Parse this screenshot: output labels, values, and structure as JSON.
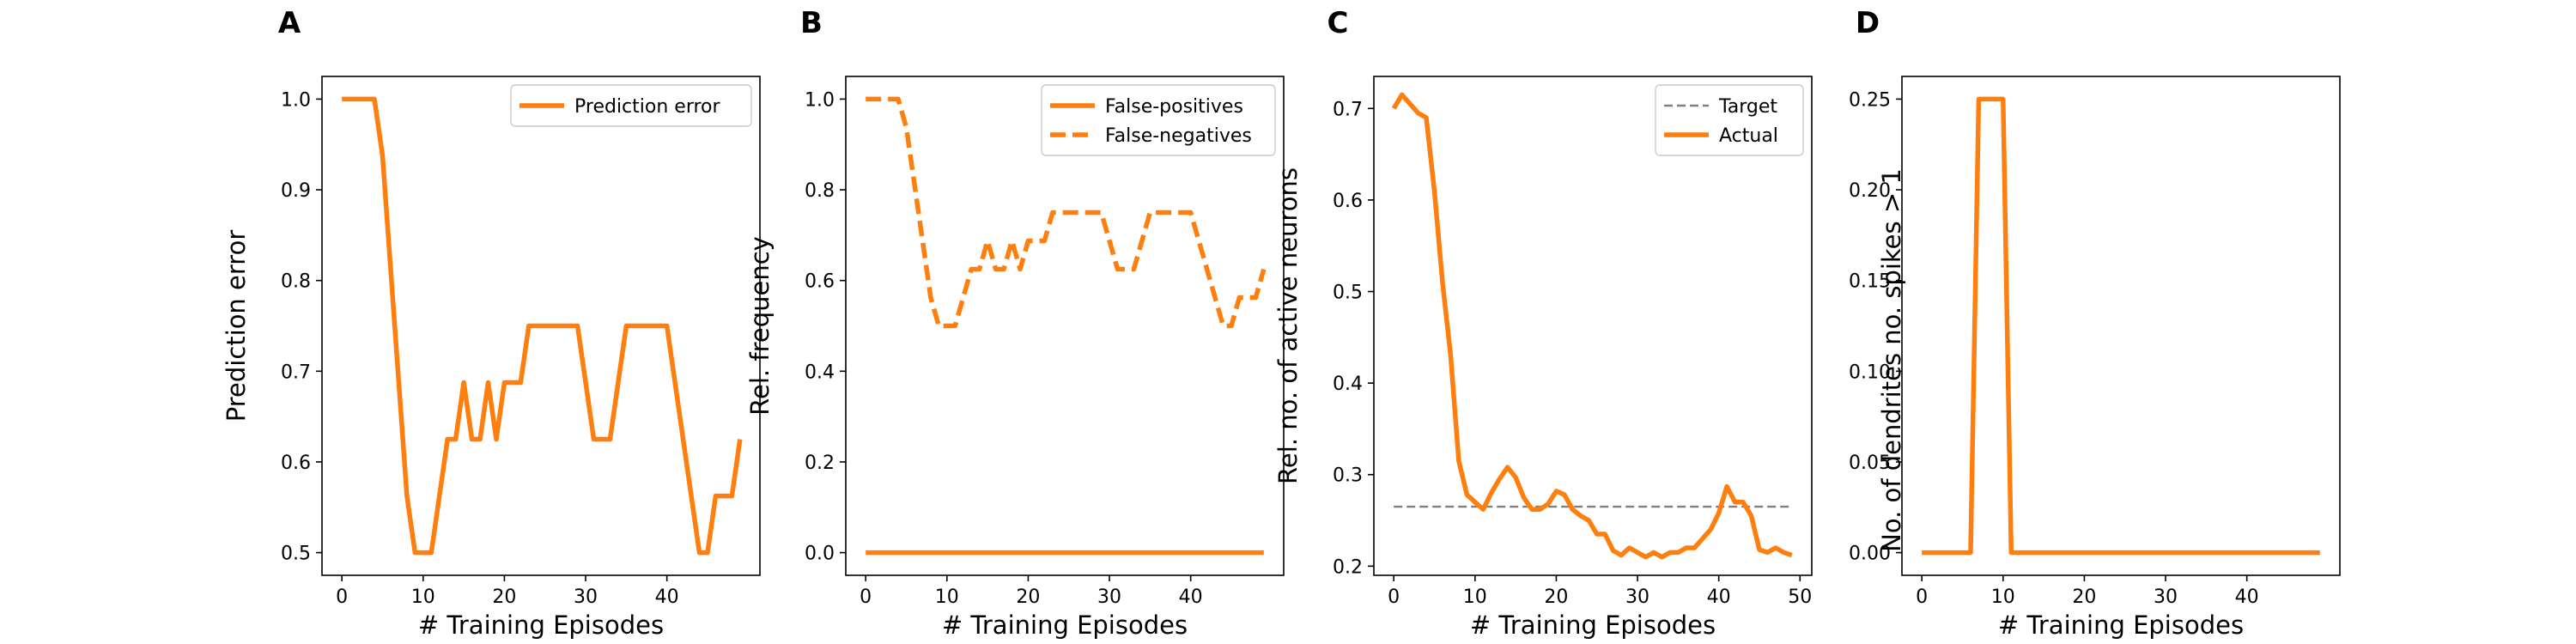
{
  "colors": {
    "orange": "#ff7f0e",
    "target_gray": "#808080",
    "axis": "#000000",
    "legend_border": "#cccccc"
  },
  "chart_data": [
    {
      "panel": "A",
      "type": "line",
      "xlabel": "# Training Episodes",
      "ylabel": "Prediction error",
      "xlim": [
        -2.45,
        51.45
      ],
      "ylim": [
        0.475,
        1.025
      ],
      "xticks": [
        0,
        10,
        20,
        30,
        40
      ],
      "xtick_labels": [
        "0",
        "10",
        "20",
        "30",
        "40"
      ],
      "yticks": [
        0.5,
        0.6,
        0.7,
        0.8,
        0.9,
        1.0
      ],
      "ytick_labels": [
        "0.5",
        "0.6",
        "0.7",
        "0.8",
        "0.9",
        "1.0"
      ],
      "legend": {
        "position": "upper right",
        "entries": [
          {
            "label": "Prediction error",
            "style": "solid",
            "color": "#ff7f0e"
          }
        ]
      },
      "series": [
        {
          "name": "Prediction error",
          "style": "solid",
          "color": "#ff7f0e",
          "x": [
            0,
            1,
            2,
            3,
            4,
            5,
            6,
            7,
            8,
            9,
            10,
            11,
            12,
            13,
            14,
            15,
            16,
            17,
            18,
            19,
            20,
            21,
            22,
            23,
            24,
            25,
            26,
            27,
            28,
            29,
            30,
            31,
            32,
            33,
            34,
            35,
            36,
            37,
            38,
            39,
            40,
            41,
            42,
            43,
            44,
            45,
            46,
            47,
            48,
            49
          ],
          "y": [
            1.0,
            1.0,
            1.0,
            1.0,
            1.0,
            0.9375,
            0.8125,
            0.6875,
            0.5625,
            0.5,
            0.5,
            0.5,
            0.5625,
            0.625,
            0.625,
            0.6875,
            0.625,
            0.625,
            0.6875,
            0.625,
            0.6875,
            0.6875,
            0.6875,
            0.75,
            0.75,
            0.75,
            0.75,
            0.75,
            0.75,
            0.75,
            0.6875,
            0.625,
            0.625,
            0.625,
            0.6875,
            0.75,
            0.75,
            0.75,
            0.75,
            0.75,
            0.75,
            0.6875,
            0.625,
            0.5625,
            0.5,
            0.5,
            0.5625,
            0.5625,
            0.5625,
            0.625
          ]
        }
      ]
    },
    {
      "panel": "B",
      "type": "line",
      "xlabel": "# Training Episodes",
      "ylabel": "Rel. frequency",
      "xlim": [
        -2.45,
        51.45
      ],
      "ylim": [
        -0.05,
        1.05
      ],
      "xticks": [
        0,
        10,
        20,
        30,
        40
      ],
      "xtick_labels": [
        "0",
        "10",
        "20",
        "30",
        "40"
      ],
      "yticks": [
        0.0,
        0.2,
        0.4,
        0.6,
        0.8,
        1.0
      ],
      "ytick_labels": [
        "0.0",
        "0.2",
        "0.4",
        "0.6",
        "0.8",
        "1.0"
      ],
      "legend": {
        "position": "upper right",
        "entries": [
          {
            "label": "False-positives",
            "style": "solid",
            "color": "#ff7f0e"
          },
          {
            "label": "False-negatives",
            "style": "dashed",
            "color": "#ff7f0e"
          }
        ]
      },
      "series": [
        {
          "name": "False-positives",
          "style": "solid",
          "color": "#ff7f0e",
          "x": [
            0,
            1,
            2,
            3,
            4,
            5,
            6,
            7,
            8,
            9,
            10,
            11,
            12,
            13,
            14,
            15,
            16,
            17,
            18,
            19,
            20,
            21,
            22,
            23,
            24,
            25,
            26,
            27,
            28,
            29,
            30,
            31,
            32,
            33,
            34,
            35,
            36,
            37,
            38,
            39,
            40,
            41,
            42,
            43,
            44,
            45,
            46,
            47,
            48,
            49
          ],
          "y": [
            0,
            0,
            0,
            0,
            0,
            0,
            0,
            0,
            0,
            0,
            0,
            0,
            0,
            0,
            0,
            0,
            0,
            0,
            0,
            0,
            0,
            0,
            0,
            0,
            0,
            0,
            0,
            0,
            0,
            0,
            0,
            0,
            0,
            0,
            0,
            0,
            0,
            0,
            0,
            0,
            0,
            0,
            0,
            0,
            0,
            0,
            0,
            0,
            0,
            0
          ]
        },
        {
          "name": "False-negatives",
          "style": "dashed",
          "color": "#ff7f0e",
          "x": [
            0,
            1,
            2,
            3,
            4,
            5,
            6,
            7,
            8,
            9,
            10,
            11,
            12,
            13,
            14,
            15,
            16,
            17,
            18,
            19,
            20,
            21,
            22,
            23,
            24,
            25,
            26,
            27,
            28,
            29,
            30,
            31,
            32,
            33,
            34,
            35,
            36,
            37,
            38,
            39,
            40,
            41,
            42,
            43,
            44,
            45,
            46,
            47,
            48,
            49
          ],
          "y": [
            1.0,
            1.0,
            1.0,
            1.0,
            1.0,
            0.9375,
            0.8125,
            0.6875,
            0.5625,
            0.5,
            0.5,
            0.5,
            0.5625,
            0.625,
            0.625,
            0.6875,
            0.625,
            0.625,
            0.6875,
            0.625,
            0.6875,
            0.6875,
            0.6875,
            0.75,
            0.75,
            0.75,
            0.75,
            0.75,
            0.75,
            0.75,
            0.6875,
            0.625,
            0.625,
            0.625,
            0.6875,
            0.75,
            0.75,
            0.75,
            0.75,
            0.75,
            0.75,
            0.6875,
            0.625,
            0.5625,
            0.5,
            0.5,
            0.5625,
            0.5625,
            0.5625,
            0.625
          ]
        }
      ]
    },
    {
      "panel": "C",
      "type": "line",
      "xlabel": "# Training Episodes",
      "ylabel": "Rel. no. of active neurons",
      "xlim": [
        -2.45,
        51.45
      ],
      "ylim": [
        0.19,
        0.735
      ],
      "xticks": [
        0,
        10,
        20,
        30,
        40,
        50
      ],
      "xtick_labels": [
        "0",
        "10",
        "20",
        "30",
        "40",
        "50"
      ],
      "yticks": [
        0.2,
        0.3,
        0.4,
        0.5,
        0.6,
        0.7
      ],
      "ytick_labels": [
        "0.2",
        "0.3",
        "0.4",
        "0.5",
        "0.6",
        "0.7"
      ],
      "legend": {
        "position": "upper right",
        "entries": [
          {
            "label": "Target",
            "style": "dashed-thin",
            "color": "#808080"
          },
          {
            "label": "Actual",
            "style": "solid",
            "color": "#ff7f0e"
          }
        ]
      },
      "series": [
        {
          "name": "Target",
          "style": "dashed-thin",
          "color": "#808080",
          "x": [
            0,
            49
          ],
          "y": [
            0.265,
            0.265
          ]
        },
        {
          "name": "Actual",
          "style": "solid",
          "color": "#ff7f0e",
          "x": [
            0,
            1,
            2,
            3,
            4,
            5,
            6,
            7,
            8,
            9,
            10,
            11,
            12,
            13,
            14,
            15,
            16,
            17,
            18,
            19,
            20,
            21,
            22,
            23,
            24,
            25,
            26,
            27,
            28,
            29,
            30,
            31,
            32,
            33,
            34,
            35,
            36,
            37,
            38,
            39,
            40,
            41,
            42,
            43,
            44,
            45,
            46,
            47,
            48,
            49
          ],
          "y": [
            0.7,
            0.715,
            0.705,
            0.695,
            0.69,
            0.61,
            0.51,
            0.43,
            0.315,
            0.278,
            0.27,
            0.262,
            0.28,
            0.295,
            0.308,
            0.297,
            0.275,
            0.262,
            0.262,
            0.268,
            0.282,
            0.278,
            0.262,
            0.255,
            0.25,
            0.235,
            0.235,
            0.217,
            0.212,
            0.22,
            0.215,
            0.21,
            0.215,
            0.21,
            0.215,
            0.215,
            0.22,
            0.22,
            0.23,
            0.24,
            0.258,
            0.287,
            0.27,
            0.27,
            0.255,
            0.218,
            0.215,
            0.22,
            0.215,
            0.212
          ]
        }
      ]
    },
    {
      "panel": "D",
      "type": "line",
      "xlabel": "# Training Episodes",
      "ylabel": "No. of dendrites no. spikes > 1",
      "xlim": [
        -2.45,
        51.45
      ],
      "ylim": [
        -0.0125,
        0.2625
      ],
      "xticks": [
        0,
        10,
        20,
        30,
        40
      ],
      "xtick_labels": [
        "0",
        "10",
        "20",
        "30",
        "40"
      ],
      "yticks": [
        0.0,
        0.05,
        0.1,
        0.15,
        0.2,
        0.25
      ],
      "ytick_labels": [
        "0.00",
        "0.05",
        "0.10",
        "0.15",
        "0.20",
        "0.25"
      ],
      "legend": null,
      "series": [
        {
          "name": "",
          "style": "solid",
          "color": "#ff7f0e",
          "x": [
            0,
            1,
            2,
            3,
            4,
            5,
            6,
            7,
            8,
            9,
            10,
            11,
            12,
            13,
            14,
            15,
            16,
            17,
            18,
            19,
            20,
            21,
            22,
            23,
            24,
            25,
            26,
            27,
            28,
            29,
            30,
            31,
            32,
            33,
            34,
            35,
            36,
            37,
            38,
            39,
            40,
            41,
            42,
            43,
            44,
            45,
            46,
            47,
            48,
            49
          ],
          "y": [
            0,
            0,
            0,
            0,
            0,
            0,
            0,
            0.25,
            0.25,
            0.25,
            0.25,
            0,
            0,
            0,
            0,
            0,
            0,
            0,
            0,
            0,
            0,
            0,
            0,
            0,
            0,
            0,
            0,
            0,
            0,
            0,
            0,
            0,
            0,
            0,
            0,
            0,
            0,
            0,
            0,
            0,
            0,
            0,
            0,
            0,
            0,
            0,
            0,
            0,
            0,
            0
          ]
        }
      ]
    }
  ]
}
